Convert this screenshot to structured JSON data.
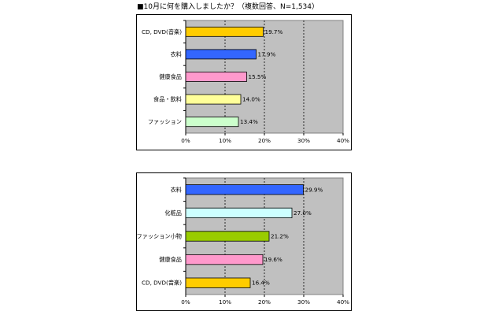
{
  "page": {
    "title": "■10月に何を購入しましたか？（複数回答、N=1,534）"
  },
  "chart_data": [
    {
      "type": "bar",
      "orientation": "horizontal",
      "categories": [
        "CD, DVD(音楽)",
        "衣料",
        "健康食品",
        "食品・飲料",
        "ファッション"
      ],
      "values": [
        19.7,
        17.9,
        15.5,
        14.0,
        13.4
      ],
      "value_labels": [
        "19.7%",
        "17.9%",
        "15.5%",
        "14.0%",
        "13.4%"
      ],
      "bar_colors": [
        "#ffcc00",
        "#3366ff",
        "#ff99cc",
        "#ffff99",
        "#ccffcc"
      ],
      "xlim": [
        0,
        40
      ],
      "xticks": [
        0,
        10,
        20,
        30,
        40
      ],
      "xtick_labels": [
        "0%",
        "10%",
        "20%",
        "30%",
        "40%"
      ],
      "plot_background": "#c0c0c0",
      "grid": "vertical dashed",
      "legend": "none"
    },
    {
      "type": "bar",
      "orientation": "horizontal",
      "categories": [
        "衣料",
        "化粧品",
        "ファッション小物",
        "健康食品",
        "CD, DVD(音楽)"
      ],
      "values": [
        29.9,
        27.0,
        21.2,
        19.6,
        16.4
      ],
      "value_labels": [
        "29.9%",
        "27.0%",
        "21.2%",
        "19.6%",
        "16.4%"
      ],
      "bar_colors": [
        "#3366ff",
        "#ccffff",
        "#99cc00",
        "#ff99cc",
        "#ffcc00"
      ],
      "xlim": [
        0,
        40
      ],
      "xticks": [
        0,
        10,
        20,
        30,
        40
      ],
      "xtick_labels": [
        "0%",
        "10%",
        "20%",
        "30%",
        "40%"
      ],
      "plot_background": "#c0c0c0",
      "grid": "vertical dashed",
      "legend": "none"
    }
  ]
}
